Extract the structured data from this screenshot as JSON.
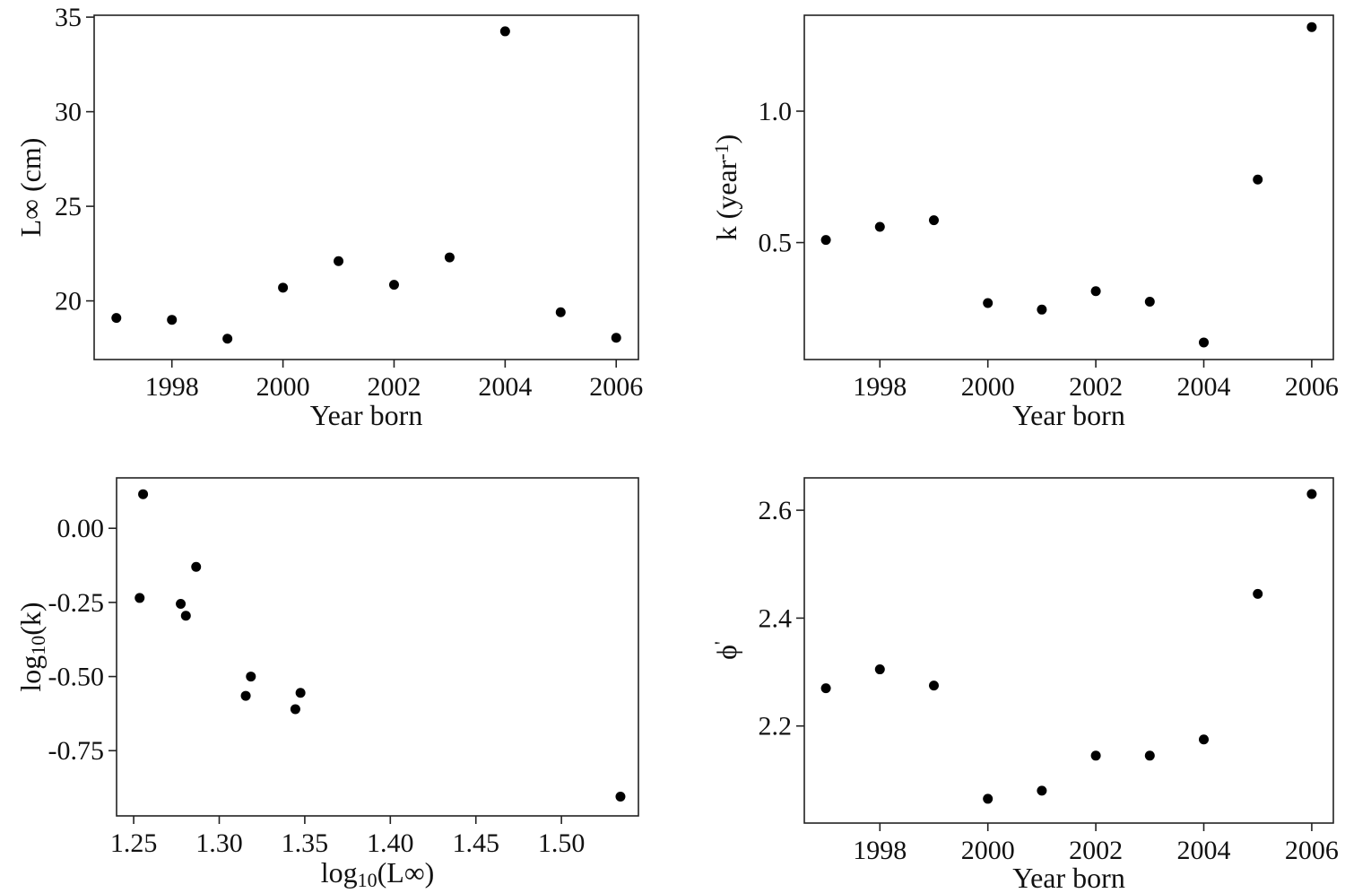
{
  "chart_data": [
    {
      "id": "linf",
      "type": "scatter",
      "xlabel": "Year born",
      "ylabel": "L∞ (cm)",
      "xlim": [
        1996.6,
        2006.4
      ],
      "ylim": [
        16.9,
        35.1
      ],
      "xticks": [
        1998,
        2000,
        2002,
        2004,
        2006
      ],
      "yticks": [
        20,
        25,
        30,
        35
      ],
      "xtick_labels": [
        "1998",
        "2000",
        "2002",
        "2004",
        "2006"
      ],
      "ytick_labels": [
        "20",
        "25",
        "30",
        "35"
      ],
      "grid": false,
      "points": [
        {
          "x": 1997,
          "y": 19.1
        },
        {
          "x": 1998,
          "y": 19.0
        },
        {
          "x": 1999,
          "y": 18.0
        },
        {
          "x": 2000,
          "y": 20.7
        },
        {
          "x": 2001,
          "y": 22.1
        },
        {
          "x": 2002,
          "y": 20.85
        },
        {
          "x": 2003,
          "y": 22.3
        },
        {
          "x": 2004,
          "y": 34.25
        },
        {
          "x": 2005,
          "y": 19.4
        },
        {
          "x": 2006,
          "y": 18.05
        }
      ]
    },
    {
      "id": "k",
      "type": "scatter",
      "xlabel": "Year born",
      "ylabel": "k (year",
      "ylabel_superscript": "-1",
      "ylabel_suffix": ")",
      "xlim": [
        1996.6,
        2006.4
      ],
      "ylim": [
        0.055,
        1.365
      ],
      "xticks": [
        1998,
        2000,
        2002,
        2004,
        2006
      ],
      "yticks": [
        0.5,
        1.0
      ],
      "xtick_labels": [
        "1998",
        "2000",
        "2002",
        "2004",
        "2006"
      ],
      "ytick_labels": [
        "0.5",
        "1.0"
      ],
      "grid": false,
      "points": [
        {
          "x": 1997,
          "y": 0.51
        },
        {
          "x": 1998,
          "y": 0.56
        },
        {
          "x": 1999,
          "y": 0.585
        },
        {
          "x": 2000,
          "y": 0.27
        },
        {
          "x": 2001,
          "y": 0.245
        },
        {
          "x": 2002,
          "y": 0.315
        },
        {
          "x": 2003,
          "y": 0.275
        },
        {
          "x": 2004,
          "y": 0.12
        },
        {
          "x": 2005,
          "y": 0.74
        },
        {
          "x": 2006,
          "y": 1.32
        }
      ]
    },
    {
      "id": "log",
      "type": "scatter",
      "xlabel": "log",
      "xlabel_subscript": "10",
      "xlabel_suffix": "(L∞)",
      "ylabel": "log",
      "ylabel_subscript": "10",
      "ylabel_suffix": "(k)",
      "xlim": [
        1.24,
        1.545
      ],
      "ylim": [
        -0.97,
        0.17
      ],
      "xticks": [
        1.25,
        1.3,
        1.35,
        1.4,
        1.45,
        1.5
      ],
      "yticks": [
        0.0,
        -0.25,
        -0.5,
        -0.75
      ],
      "xtick_labels": [
        "1.25",
        "1.30",
        "1.35",
        "1.40",
        "1.45",
        "1.50"
      ],
      "ytick_labels": [
        "0.00",
        "-0.25",
        "-0.50",
        "-0.75"
      ],
      "grid": false,
      "points": [
        {
          "x": 1.2555,
          "y": 0.115
        },
        {
          "x": 1.2535,
          "y": -0.235
        },
        {
          "x": 1.2865,
          "y": -0.13
        },
        {
          "x": 1.2775,
          "y": -0.255
        },
        {
          "x": 1.2805,
          "y": -0.295
        },
        {
          "x": 1.3185,
          "y": -0.5
        },
        {
          "x": 1.3155,
          "y": -0.565
        },
        {
          "x": 1.3475,
          "y": -0.555
        },
        {
          "x": 1.3445,
          "y": -0.61
        },
        {
          "x": 1.5345,
          "y": -0.905
        }
      ]
    },
    {
      "id": "phi",
      "type": "scatter",
      "xlabel": "Year born",
      "ylabel": "ϕ",
      "ylabel_superscript": "'",
      "xlim": [
        1996.6,
        2006.4
      ],
      "ylim": [
        2.02,
        2.66
      ],
      "xticks": [
        1998,
        2000,
        2002,
        2004,
        2006
      ],
      "yticks": [
        2.2,
        2.4,
        2.6
      ],
      "xtick_labels": [
        "1998",
        "2000",
        "2002",
        "2004",
        "2006"
      ],
      "ytick_labels": [
        "2.2",
        "2.4",
        "2.6"
      ],
      "grid": false,
      "points": [
        {
          "x": 1997,
          "y": 2.27
        },
        {
          "x": 1998,
          "y": 2.305
        },
        {
          "x": 1999,
          "y": 2.275
        },
        {
          "x": 2000,
          "y": 2.065
        },
        {
          "x": 2001,
          "y": 2.08
        },
        {
          "x": 2002,
          "y": 2.145
        },
        {
          "x": 2003,
          "y": 2.145
        },
        {
          "x": 2004,
          "y": 2.175
        },
        {
          "x": 2005,
          "y": 2.445
        },
        {
          "x": 2006,
          "y": 2.63
        }
      ]
    }
  ]
}
